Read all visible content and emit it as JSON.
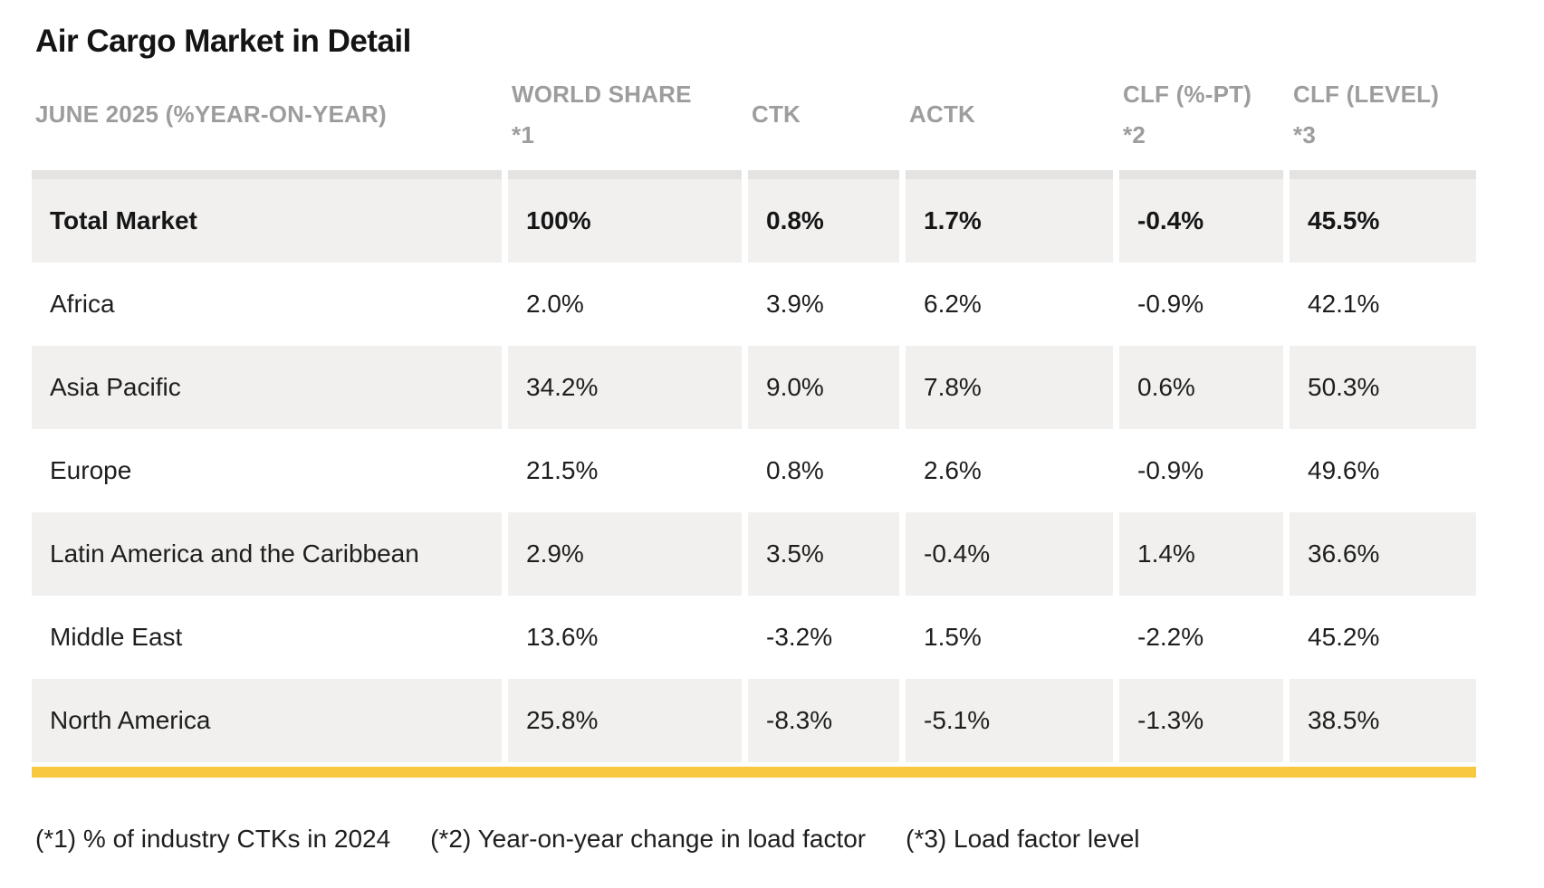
{
  "page": {
    "title": "Air Cargo Market in Detail"
  },
  "table": {
    "period_header": "JUNE 2025 (%YEAR-ON-YEAR)",
    "columns": [
      {
        "label": "WORLD SHARE",
        "footnote_ref": "*1"
      },
      {
        "label": "CTK",
        "footnote_ref": ""
      },
      {
        "label": "ACTK",
        "footnote_ref": ""
      },
      {
        "label": "CLF (%-PT)",
        "footnote_ref": "*2"
      },
      {
        "label": "CLF (LEVEL)",
        "footnote_ref": "*3"
      }
    ],
    "rows": [
      {
        "region": "Total Market",
        "world_share": "100%",
        "ctk": "0.8%",
        "actk": "1.7%",
        "clf_pt": "-0.4%",
        "clf_level": "45.5%"
      },
      {
        "region": "Africa",
        "world_share": "2.0%",
        "ctk": "3.9%",
        "actk": "6.2%",
        "clf_pt": "-0.9%",
        "clf_level": "42.1%"
      },
      {
        "region": "Asia Pacific",
        "world_share": "34.2%",
        "ctk": "9.0%",
        "actk": "7.8%",
        "clf_pt": "0.6%",
        "clf_level": "50.3%"
      },
      {
        "region": "Europe",
        "world_share": "21.5%",
        "ctk": "0.8%",
        "actk": "2.6%",
        "clf_pt": "-0.9%",
        "clf_level": "49.6%"
      },
      {
        "region": "Latin America and the Caribbean",
        "world_share": "2.9%",
        "ctk": "3.5%",
        "actk": "-0.4%",
        "clf_pt": "1.4%",
        "clf_level": "36.6%"
      },
      {
        "region": "Middle East",
        "world_share": "13.6%",
        "ctk": "-3.2%",
        "actk": "1.5%",
        "clf_pt": "-2.2%",
        "clf_level": "45.2%"
      },
      {
        "region": "North America",
        "world_share": "25.8%",
        "ctk": "-8.3%",
        "actk": "-5.1%",
        "clf_pt": "-1.3%",
        "clf_level": "38.5%"
      }
    ]
  },
  "footnotes": [
    "(*1) % of industry CTKs in 2024",
    "(*2) Year-on-year change in load factor",
    "(*3) Load factor level"
  ],
  "colors": {
    "accent_bar": "#F8C93E",
    "row_shade": "#F1F0EF",
    "header_divider": "#E4E3E2",
    "header_text": "#9D9D9D",
    "body_text": "#1E1E1E"
  }
}
